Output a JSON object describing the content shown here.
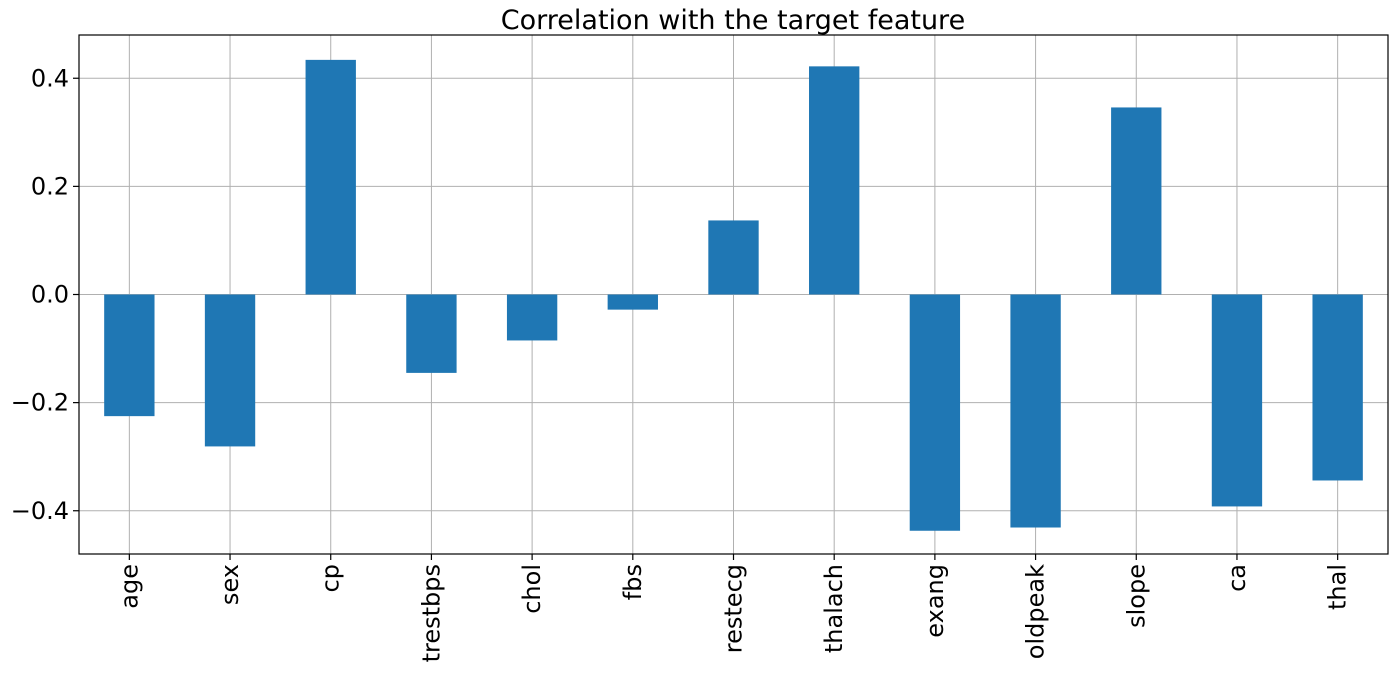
{
  "chart_data": {
    "type": "bar",
    "title": "Correlation with the target feature",
    "categories": [
      "age",
      "sex",
      "cp",
      "trestbps",
      "chol",
      "fbs",
      "restecg",
      "thalach",
      "exang",
      "oldpeak",
      "slope",
      "ca",
      "thal"
    ],
    "values": [
      -0.225,
      -0.281,
      0.434,
      -0.145,
      -0.085,
      -0.028,
      0.137,
      0.422,
      -0.437,
      -0.431,
      0.346,
      -0.392,
      -0.344
    ],
    "ytick_values": [
      -0.4,
      -0.2,
      0.0,
      0.2,
      0.4
    ],
    "ytick_labels": [
      "−0.4",
      "−0.2",
      "0.0",
      "0.2",
      "0.4"
    ],
    "ylim": [
      -0.48,
      0.48
    ],
    "xlabel": "",
    "ylabel": "",
    "grid": true,
    "bar_color": "#1f77b4"
  }
}
